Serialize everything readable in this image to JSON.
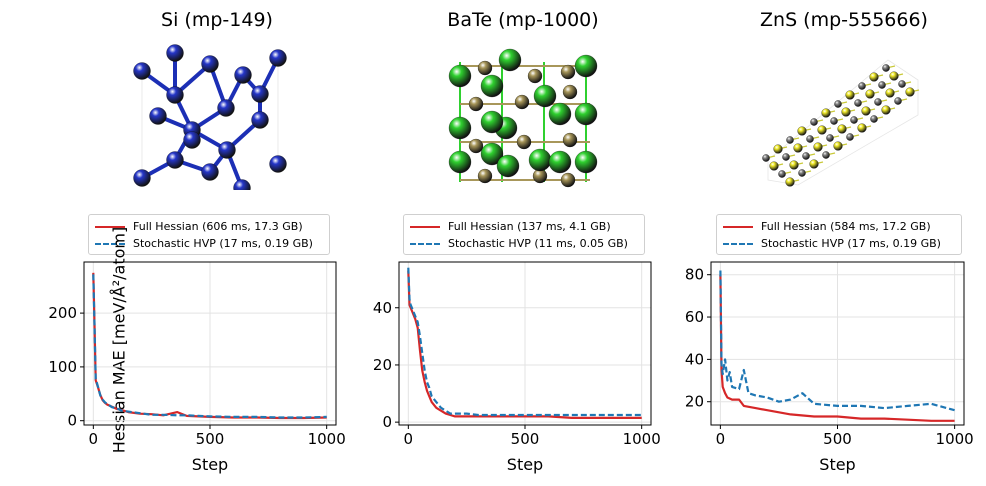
{
  "figure": {
    "ylabel": "Hessian MAE [meV/Å²/atom]",
    "colors": {
      "full": "#d62728",
      "stochastic": "#1f77b4",
      "si_atom": "#2536c8",
      "ba_atom": "#2fd02f",
      "te_atom": "#a8975a",
      "zn_atom": "#8a8a8a",
      "s_atom": "#f2ec2a"
    }
  },
  "panels": [
    {
      "title": "Si (mp-149)",
      "legend": [
        "Full Hessian (606 ms, 17.3 GB)",
        "Stochastic HVP (17 ms, 0.19 GB)"
      ]
    },
    {
      "title": "BaTe (mp-1000)",
      "legend": [
        "Full Hessian (137 ms, 4.1 GB)",
        "Stochastic HVP (11 ms, 0.05 GB)"
      ]
    },
    {
      "title": "ZnS (mp-555666)",
      "legend": [
        "Full Hessian (584 ms, 17.2 GB)",
        "Stochastic HVP (17 ms, 0.19 GB)"
      ]
    }
  ],
  "chart_data": [
    {
      "type": "line",
      "title": "Si (mp-149)",
      "xlabel": "Step",
      "ylabel": "Hessian MAE [meV/Å²/atom]",
      "xlim": [
        -40,
        1040
      ],
      "ylim": [
        -8,
        295
      ],
      "xticks": [
        0,
        500,
        1000
      ],
      "yticks": [
        0,
        100,
        200
      ],
      "grid": true,
      "legend_position": "above",
      "series": [
        {
          "name": "Full Hessian (606 ms, 17.3 GB)",
          "style": "solid",
          "x": [
            0,
            5,
            10,
            20,
            30,
            40,
            50,
            60,
            80,
            100,
            120,
            150,
            200,
            250,
            300,
            360,
            400,
            450,
            500,
            600,
            700,
            800,
            900,
            1000
          ],
          "y": [
            275,
            180,
            75,
            62,
            48,
            38,
            33,
            30,
            26,
            22,
            20,
            16,
            13,
            12,
            10,
            16,
            9,
            8,
            7,
            6,
            6,
            5,
            5,
            6
          ]
        },
        {
          "name": "Stochastic HVP (17 ms, 0.19 GB)",
          "style": "dashed",
          "x": [
            0,
            5,
            10,
            20,
            30,
            40,
            50,
            60,
            80,
            100,
            120,
            150,
            200,
            250,
            300,
            360,
            400,
            450,
            500,
            600,
            700,
            800,
            900,
            1000
          ],
          "y": [
            272,
            178,
            78,
            63,
            47,
            39,
            34,
            31,
            25,
            23,
            19,
            17,
            14,
            11,
            11,
            10,
            10,
            9,
            8,
            7,
            7,
            6,
            6,
            7
          ]
        }
      ]
    },
    {
      "type": "line",
      "title": "BaTe (mp-1000)",
      "xlabel": "Step",
      "ylabel": "",
      "xlim": [
        -40,
        1040
      ],
      "ylim": [
        -1,
        56
      ],
      "xticks": [
        0,
        500,
        1000
      ],
      "yticks": [
        0,
        20,
        40
      ],
      "grid": true,
      "legend_position": "above",
      "series": [
        {
          "name": "Full Hessian (137 ms, 4.1 GB)",
          "style": "solid",
          "x": [
            0,
            5,
            10,
            20,
            30,
            40,
            50,
            60,
            70,
            80,
            90,
            100,
            120,
            140,
            160,
            180,
            200,
            250,
            300,
            400,
            500,
            600,
            700,
            800,
            900,
            1000
          ],
          "y": [
            53,
            41,
            40,
            38,
            36,
            33,
            25,
            18,
            14,
            11,
            9,
            7,
            5,
            4,
            3,
            2.5,
            2,
            2,
            2,
            2,
            2,
            2,
            1.5,
            1.5,
            1.5,
            1.5
          ]
        },
        {
          "name": "Stochastic HVP (11 ms, 0.05 GB)",
          "style": "dashed",
          "x": [
            0,
            5,
            10,
            20,
            30,
            40,
            50,
            60,
            70,
            80,
            90,
            100,
            120,
            140,
            160,
            180,
            200,
            250,
            300,
            400,
            500,
            600,
            700,
            800,
            900,
            1000
          ],
          "y": [
            54,
            43,
            41,
            39,
            37,
            35,
            30,
            24,
            18,
            14,
            12,
            9,
            7,
            5,
            4,
            3,
            3,
            3,
            2.5,
            2.5,
            2.5,
            2.5,
            2.5,
            2.5,
            2.5,
            2.5
          ]
        }
      ]
    },
    {
      "type": "line",
      "title": "ZnS (mp-555666)",
      "xlabel": "Step",
      "ylabel": "",
      "xlim": [
        -40,
        1040
      ],
      "ylim": [
        9,
        86
      ],
      "xticks": [
        0,
        500,
        1000
      ],
      "yticks": [
        20,
        40,
        60,
        80
      ],
      "grid": true,
      "legend_position": "above",
      "series": [
        {
          "name": "Full Hessian (584 ms, 17.2 GB)",
          "style": "solid",
          "x": [
            0,
            5,
            10,
            20,
            30,
            50,
            80,
            100,
            150,
            200,
            250,
            300,
            400,
            500,
            600,
            700,
            800,
            900,
            1000
          ],
          "y": [
            80,
            35,
            27,
            24,
            22,
            21,
            21,
            18,
            17,
            16,
            15,
            14,
            13,
            13,
            12,
            12,
            11.5,
            11,
            11
          ]
        },
        {
          "name": "Stochastic HVP (17 ms, 0.19 GB)",
          "style": "dashed",
          "x": [
            0,
            5,
            10,
            20,
            30,
            40,
            50,
            80,
            100,
            120,
            150,
            200,
            250,
            300,
            350,
            400,
            500,
            600,
            700,
            800,
            900,
            1000
          ],
          "y": [
            82,
            38,
            33,
            40,
            30,
            34,
            27,
            26,
            35,
            24,
            23,
            22,
            20,
            21,
            24,
            19,
            18,
            18,
            17,
            18,
            19,
            16
          ]
        }
      ]
    }
  ]
}
